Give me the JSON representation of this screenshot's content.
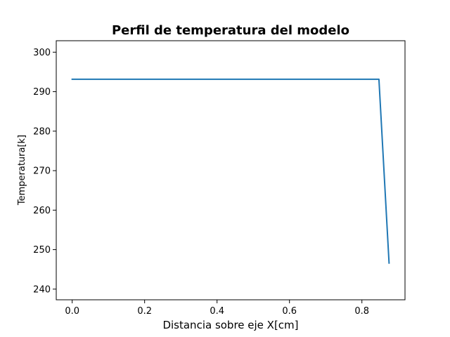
{
  "chart_data": {
    "type": "line",
    "title": "Perfil de temperatura del modelo",
    "xlabel": "Distancia sobre eje X[cm]",
    "ylabel": "Temperatura[k]",
    "xlim": [
      -0.044,
      0.919
    ],
    "ylim": [
      237.3,
      302.9
    ],
    "xticks": [
      0.0,
      0.2,
      0.4,
      0.6,
      0.8
    ],
    "xtick_labels": [
      "0.0",
      "0.2",
      "0.4",
      "0.6",
      "0.8"
    ],
    "yticks": [
      240,
      250,
      260,
      270,
      280,
      290,
      300
    ],
    "ytick_labels": [
      "240",
      "250",
      "260",
      "270",
      "280",
      "290",
      "300"
    ],
    "grid": false,
    "series": [
      {
        "color": "#1f77b4",
        "x": [
          0.0,
          0.1,
          0.2,
          0.3,
          0.4,
          0.5,
          0.6,
          0.7,
          0.8,
          0.847,
          0.875
        ],
        "y": [
          293.15,
          293.15,
          293.15,
          293.15,
          293.15,
          293.15,
          293.15,
          293.15,
          293.15,
          293.15,
          246.6
        ]
      }
    ]
  }
}
